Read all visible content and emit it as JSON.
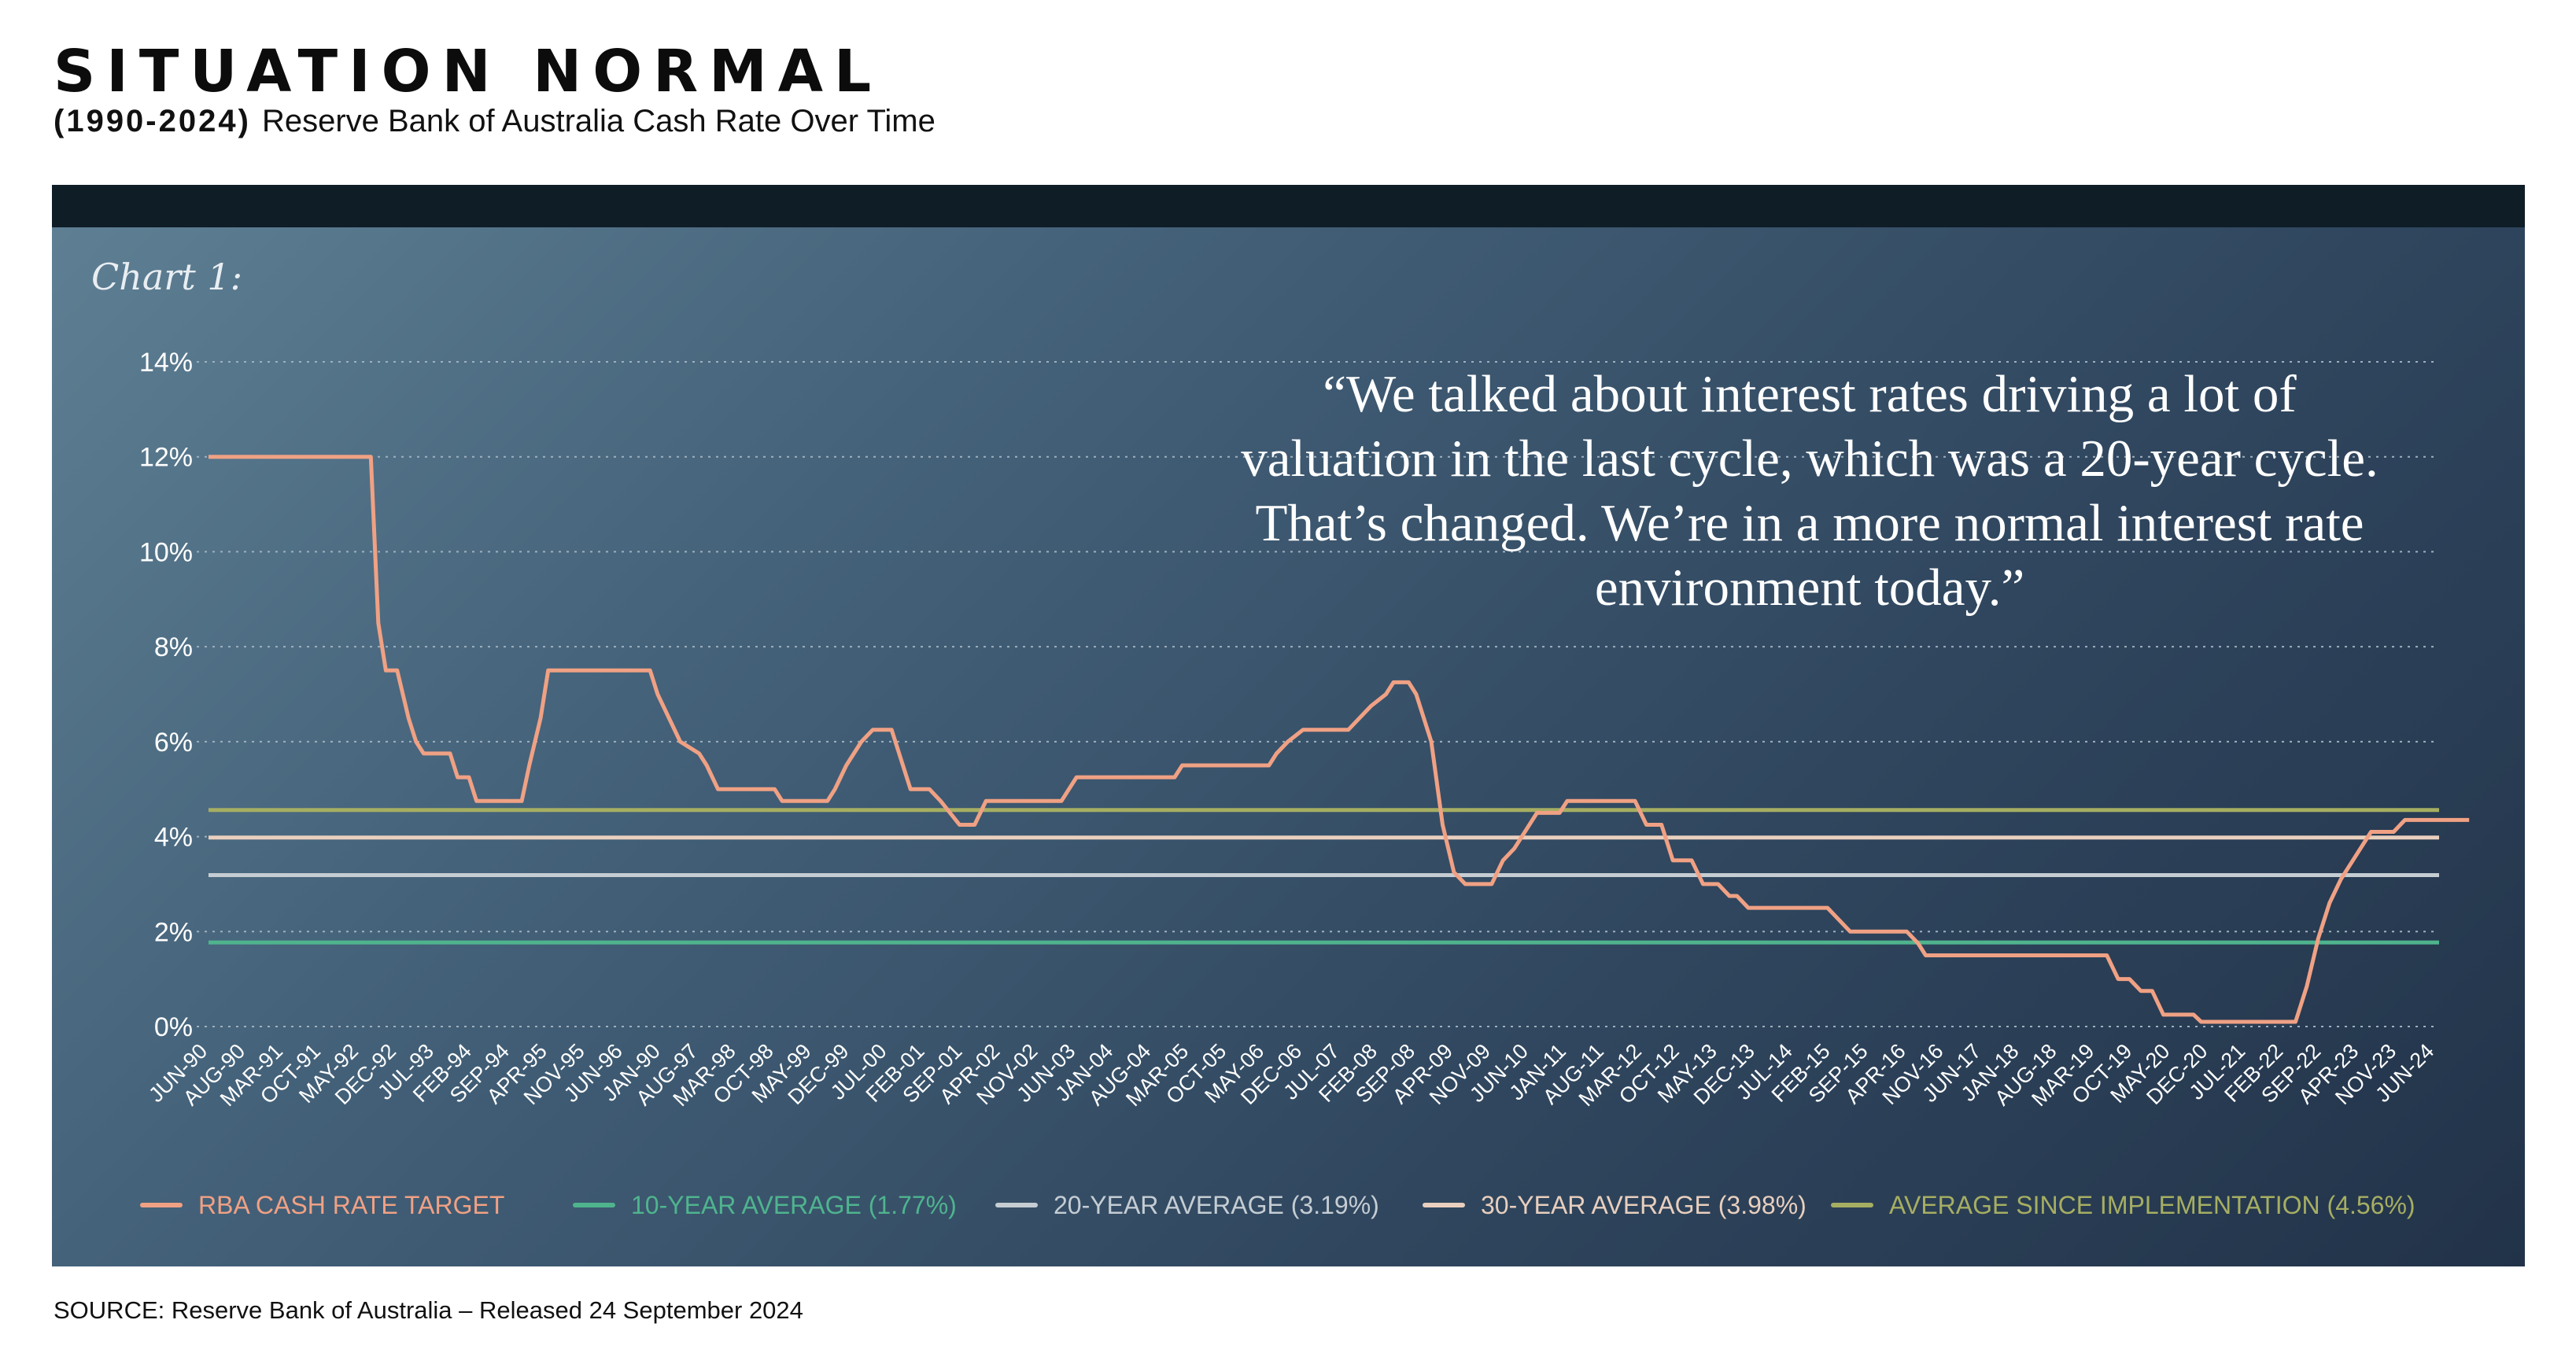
{
  "header": {
    "title": "SITUATION NORMAL",
    "subtitle_range": "(1990-2024)",
    "subtitle_text": "Reserve Bank of Australia Cash Rate Over Time"
  },
  "panel": {
    "chart_label": "Chart 1:",
    "quote": "“We talked about interest rates driving a lot of valuation in the last cycle, which was a 20-year cycle. That’s changed. We’re in a more normal interest rate environment today.”"
  },
  "source": "SOURCE: Reserve Bank of Australia – Released 24 September 2024",
  "colors": {
    "rate": "#f0a184",
    "avg10": "#4fb48e",
    "avg20": "#c5cdd3",
    "avg30": "#e9cfbe",
    "avgAll": "#a6ae62",
    "grid": "#9fb0bd",
    "tick": "#ffffff"
  },
  "chart_data": {
    "type": "line",
    "ylim": [
      0,
      14
    ],
    "yticks": [
      "0%",
      "2%",
      "4%",
      "6%",
      "8%",
      "10%",
      "12%",
      "14%"
    ],
    "grid": "horizontal-dotted",
    "legend_position": "bottom",
    "x_tick_labels": [
      "JUN-90",
      "AUG-90",
      "MAR-91",
      "OCT-91",
      "MAY-92",
      "DEC-92",
      "JUL-93",
      "FEB-94",
      "SEP-94",
      "APR-95",
      "NOV-95",
      "JUN-96",
      "JAN-90",
      "AUG-97",
      "MAR-98",
      "OCT-98",
      "MAY-99",
      "DEC-99",
      "JUL-00",
      "FEB-01",
      "SEP-01",
      "APR-02",
      "NOV-02",
      "JUN-03",
      "JAN-04",
      "AUG-04",
      "MAR-05",
      "OCT-05",
      "MAY-06",
      "DEC-06",
      "JUL-07",
      "FEB-08",
      "SEP-08",
      "APR-09",
      "NOV-09",
      "JUN-10",
      "JAN-11",
      "AUG-11",
      "MAR-12",
      "OCT-12",
      "MAY-13",
      "DEC-13",
      "JUL-14",
      "FEB-15",
      "SEP-15",
      "APR-16",
      "NOV-16",
      "JUN-17",
      "JAN-18",
      "AUG-18",
      "MAR-19",
      "OCT-19",
      "MAY-20",
      "DEC-20",
      "JUL-21",
      "FEB-22",
      "SEP-22",
      "APR-23",
      "NOV-23",
      "JUN-24"
    ],
    "series": [
      {
        "name": "RBA CASH RATE TARGET",
        "kind": "line",
        "points": [
          [
            0,
            12
          ],
          [
            4.3,
            12
          ],
          [
            4.5,
            8.5
          ],
          [
            4.7,
            7.5
          ],
          [
            5.0,
            7.5
          ],
          [
            5.3,
            6.5
          ],
          [
            5.5,
            6.0
          ],
          [
            5.7,
            5.75
          ],
          [
            6.4,
            5.75
          ],
          [
            6.6,
            5.25
          ],
          [
            6.9,
            5.25
          ],
          [
            7.1,
            4.75
          ],
          [
            7.9,
            4.75
          ],
          [
            8.3,
            4.75
          ],
          [
            8.5,
            5.5
          ],
          [
            8.8,
            6.5
          ],
          [
            9.0,
            7.5
          ],
          [
            11.7,
            7.5
          ],
          [
            11.9,
            7.0
          ],
          [
            12.5,
            6.0
          ],
          [
            13.0,
            5.75
          ],
          [
            13.2,
            5.5
          ],
          [
            13.5,
            5.0
          ],
          [
            15.0,
            5.0
          ],
          [
            15.2,
            4.75
          ],
          [
            16.4,
            4.75
          ],
          [
            16.6,
            5.0
          ],
          [
            16.9,
            5.5
          ],
          [
            17.3,
            6.0
          ],
          [
            17.6,
            6.25
          ],
          [
            18.1,
            6.25
          ],
          [
            18.6,
            5.0
          ],
          [
            19.1,
            5.0
          ],
          [
            19.4,
            4.75
          ],
          [
            19.9,
            4.25
          ],
          [
            20.3,
            4.25
          ],
          [
            20.6,
            4.75
          ],
          [
            22.6,
            4.75
          ],
          [
            22.8,
            5.0
          ],
          [
            23.0,
            5.25
          ],
          [
            25.6,
            5.25
          ],
          [
            25.8,
            5.5
          ],
          [
            28.1,
            5.5
          ],
          [
            28.3,
            5.75
          ],
          [
            28.6,
            6.0
          ],
          [
            29.0,
            6.25
          ],
          [
            30.2,
            6.25
          ],
          [
            30.5,
            6.5
          ],
          [
            30.8,
            6.75
          ],
          [
            31.2,
            7.0
          ],
          [
            31.4,
            7.25
          ],
          [
            31.8,
            7.25
          ],
          [
            32.0,
            7.0
          ],
          [
            32.4,
            6.0
          ],
          [
            32.7,
            4.25
          ],
          [
            33.0,
            3.25
          ],
          [
            33.3,
            3.0
          ],
          [
            34.0,
            3.0
          ],
          [
            34.3,
            3.5
          ],
          [
            34.6,
            3.75
          ],
          [
            35.0,
            4.25
          ],
          [
            35.2,
            4.5
          ],
          [
            35.8,
            4.5
          ],
          [
            36.0,
            4.75
          ],
          [
            37.8,
            4.75
          ],
          [
            38.1,
            4.25
          ],
          [
            38.5,
            4.25
          ],
          [
            38.8,
            3.5
          ],
          [
            39.3,
            3.5
          ],
          [
            39.6,
            3.0
          ],
          [
            40.0,
            3.0
          ],
          [
            40.3,
            2.75
          ],
          [
            40.5,
            2.75
          ],
          [
            40.8,
            2.5
          ],
          [
            42.9,
            2.5
          ],
          [
            43.2,
            2.25
          ],
          [
            43.5,
            2.0
          ],
          [
            45.0,
            2.0
          ],
          [
            45.3,
            1.75
          ],
          [
            45.5,
            1.5
          ],
          [
            50.3,
            1.5
          ],
          [
            50.6,
            1.0
          ],
          [
            50.9,
            1.0
          ],
          [
            51.2,
            0.75
          ],
          [
            51.5,
            0.75
          ],
          [
            51.8,
            0.25
          ],
          [
            52.6,
            0.25
          ],
          [
            52.8,
            0.1
          ],
          [
            55.3,
            0.1
          ],
          [
            55.6,
            0.85
          ],
          [
            55.9,
            1.85
          ],
          [
            56.2,
            2.6
          ],
          [
            56.5,
            3.1
          ],
          [
            56.9,
            3.6
          ],
          [
            57.3,
            4.1
          ],
          [
            57.9,
            4.1
          ],
          [
            58.2,
            4.35
          ],
          [
            59.9,
            4.35
          ]
        ]
      },
      {
        "name": "10-YEAR AVERAGE (1.77%)",
        "kind": "constant",
        "value": 1.77
      },
      {
        "name": "20-YEAR AVERAGE (3.19%)",
        "kind": "constant",
        "value": 3.19
      },
      {
        "name": "30-YEAR AVERAGE (3.98%)",
        "kind": "constant",
        "value": 3.98
      },
      {
        "name": "AVERAGE SINCE IMPLEMENTATION (4.56%)",
        "kind": "constant",
        "value": 4.56
      }
    ]
  }
}
